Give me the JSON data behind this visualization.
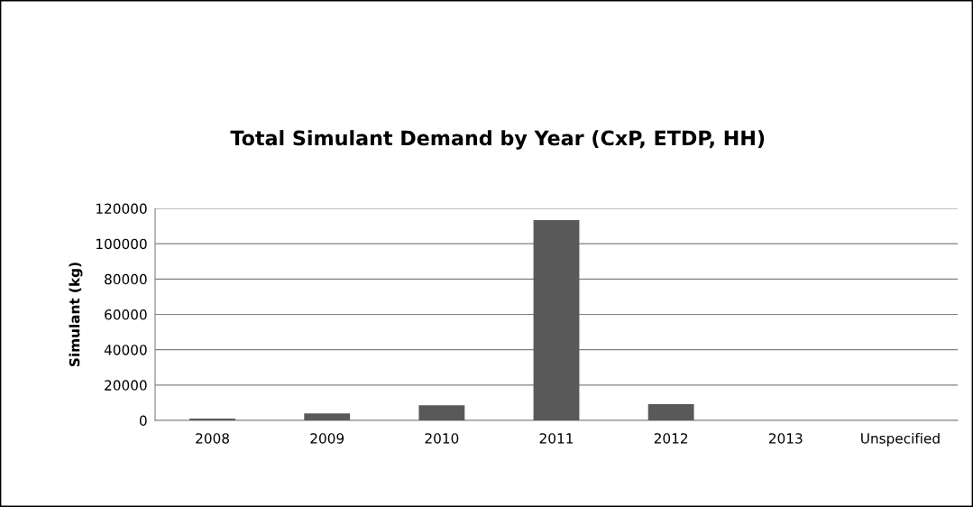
{
  "chart_data": {
    "type": "bar",
    "title": "Total Simulant Demand by Year (CxP, ETDP, HH)",
    "ylabel": "Simulant (kg)",
    "categories": [
      "2008",
      "2009",
      "2010",
      "2011",
      "2012",
      "2013",
      "Unspecified"
    ],
    "values": [
      1000,
      4000,
      8600,
      113300,
      9200,
      0,
      0
    ],
    "color": "#595959",
    "ylim": [
      0,
      120000
    ],
    "yticks": [
      0,
      20000,
      40000,
      60000,
      80000,
      100000,
      120000
    ],
    "grid": "y"
  }
}
